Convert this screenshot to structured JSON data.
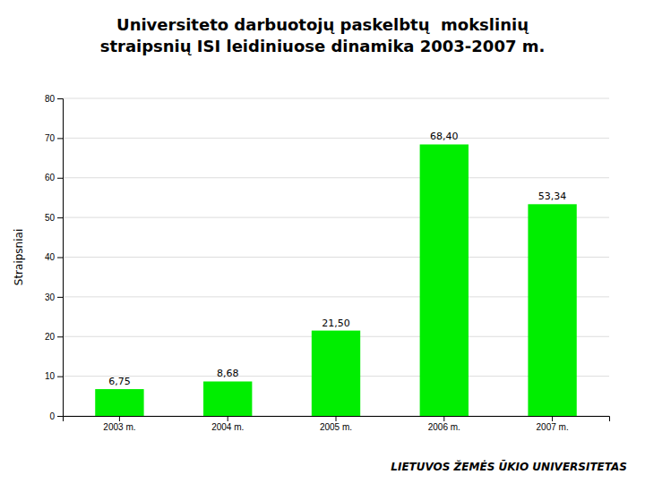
{
  "chart_data": {
    "type": "bar",
    "title": "Universiteto darbuotojų paskelbtų  mokslinių\nstraipsnių ISI leidiniuose dinamika 2003-2007 m.",
    "ylabel": "Straipsniai",
    "categories": [
      "2003 m.",
      "2004 m.",
      "2005 m.",
      "2006 m.",
      "2007 m."
    ],
    "values": [
      6.75,
      8.68,
      21.5,
      68.4,
      53.34
    ],
    "value_labels": [
      "6,75",
      "8,68",
      "21,50",
      "68,40",
      "53,34"
    ],
    "data_labels": true,
    "color": "#00EE00",
    "ylim": [
      0,
      80
    ],
    "yticks": [
      0,
      10,
      20,
      30,
      40,
      50,
      60,
      70,
      80
    ],
    "grid": true,
    "annotations": [
      "LIETUVOS ŽEMĖS ŪKIO UNIVERSITETAS"
    ]
  }
}
